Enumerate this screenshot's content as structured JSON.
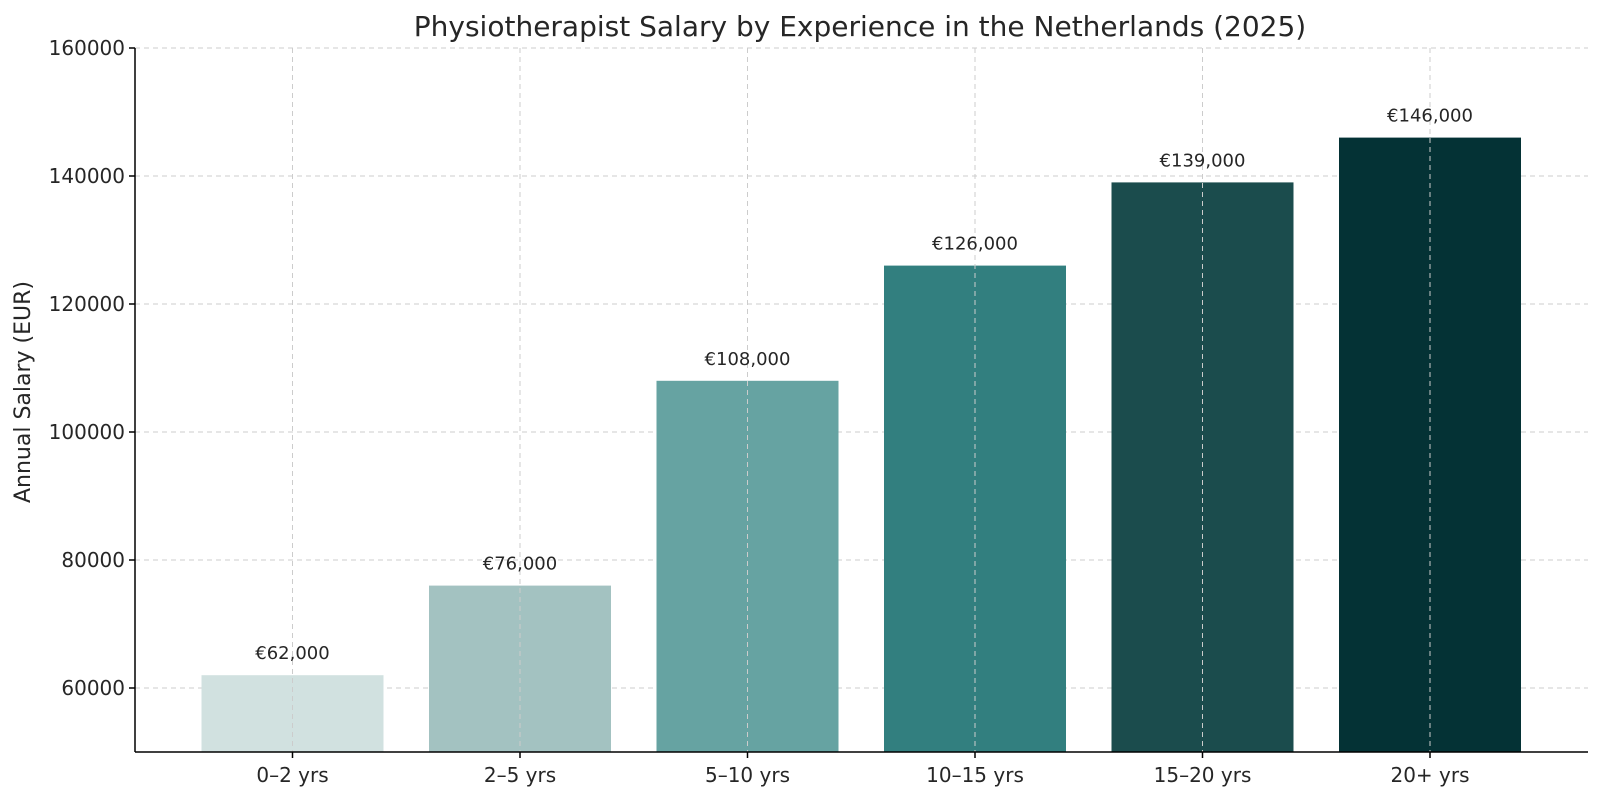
{
  "chart_data": {
    "type": "bar",
    "title": "Physiotherapist Salary by Experience in the Netherlands (2025)",
    "xlabel": "",
    "ylabel": "Annual Salary (EUR)",
    "categories": [
      "0–2 yrs",
      "2–5 yrs",
      "5–10 yrs",
      "10–15 yrs",
      "15–20 yrs",
      "20+ yrs"
    ],
    "values": [
      62000,
      76000,
      108000,
      126000,
      139000,
      146000
    ],
    "data_labels": [
      "€62,000",
      "€76,000",
      "€108,000",
      "€126,000",
      "€139,000",
      "€146,000"
    ],
    "colors": [
      "#d1e1e0",
      "#a3c2c1",
      "#66a3a2",
      "#327f7f",
      "#1b4c4d",
      "#043235"
    ],
    "ylim": [
      50000,
      160000
    ],
    "yticks": [
      60000,
      80000,
      100000,
      120000,
      140000,
      160000
    ],
    "grid": true,
    "legend": "none"
  }
}
